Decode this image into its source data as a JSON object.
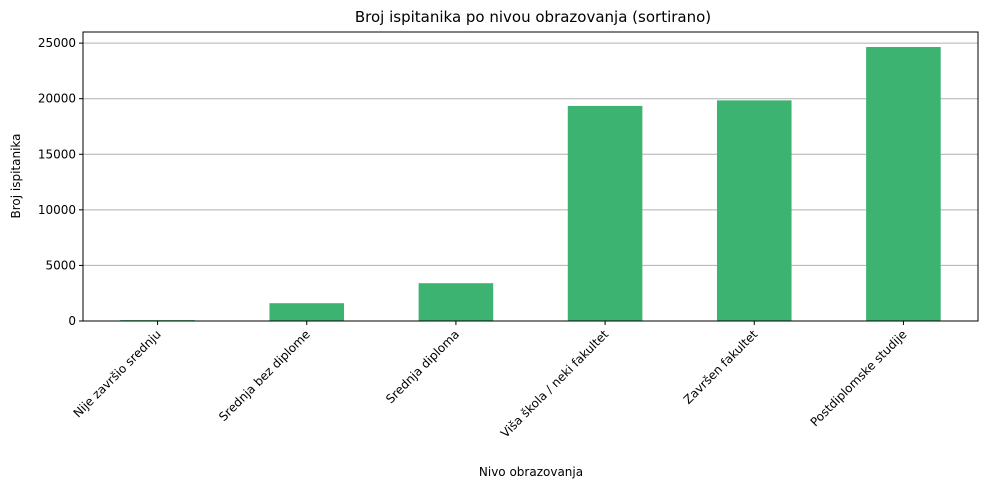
{
  "chart_data": {
    "type": "bar",
    "title": "Broj ispitanika po nivou obrazovanja (sortirano)",
    "xlabel": "Nivo obrazovanja",
    "ylabel": "Broj ispitanika",
    "categories": [
      "Nije završio srednju",
      "Srednja bez diplome",
      "Srednja diploma",
      "Viša škola / neki fakultet",
      "Završen fakultet",
      "Postdiplomske studije"
    ],
    "values": [
      80,
      1600,
      3400,
      19350,
      19850,
      24650
    ],
    "ylim": [
      0,
      26000
    ],
    "yticks": [
      0,
      5000,
      10000,
      15000,
      20000,
      25000
    ],
    "grid": "y",
    "bar_color": "#3cb371"
  }
}
